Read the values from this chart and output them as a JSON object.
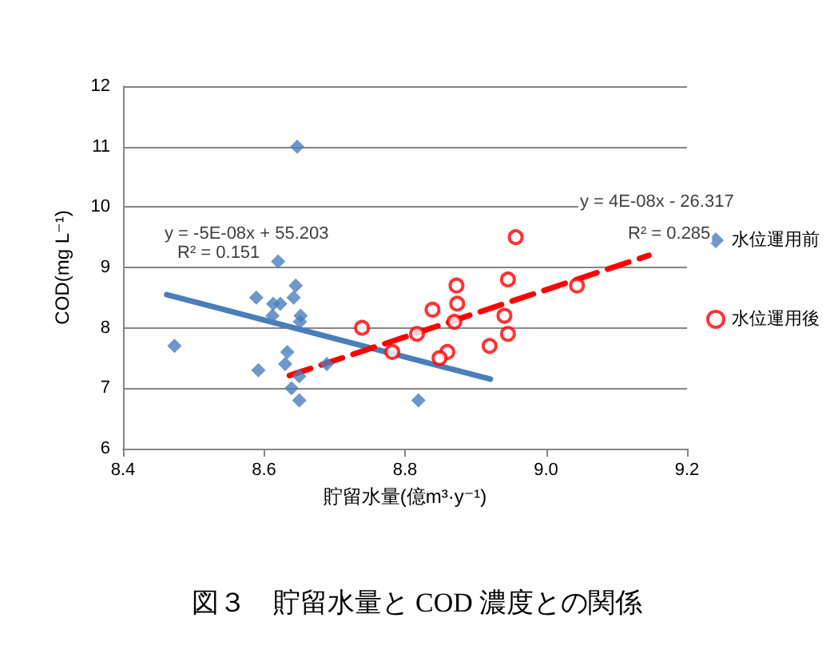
{
  "chart_data": {
    "type": "scatter",
    "title": "図３　貯留水量と COD 濃度との関係",
    "xlabel": "貯留水量(億m³·y⁻¹)",
    "ylabel": "COD(mg L⁻¹)",
    "xlim": [
      8.4,
      9.2
    ],
    "xticks": [
      {
        "value": 8.4,
        "label": "8.4"
      },
      {
        "value": 8.6,
        "label": "8.6"
      },
      {
        "value": 8.8,
        "label": "8.8"
      },
      {
        "value": 9.0,
        "label": "9.0"
      },
      {
        "value": 9.2,
        "label": "9.2"
      }
    ],
    "ylim": [
      6,
      12
    ],
    "yticks": [
      6,
      7,
      8,
      9,
      10,
      11,
      12
    ],
    "grid": "y",
    "legend": "right",
    "series": [
      {
        "name": "水位運用前",
        "color": "#4a7ebb",
        "marker": "diamond",
        "x": [
          8.473,
          8.647,
          8.589,
          8.592,
          8.612,
          8.613,
          8.623,
          8.62,
          8.642,
          8.645,
          8.633,
          8.63,
          8.639,
          8.651,
          8.652,
          8.65,
          8.65,
          8.689,
          8.819
        ],
        "values": [
          7.7,
          11.0,
          8.5,
          7.3,
          8.2,
          8.4,
          8.4,
          9.1,
          8.5,
          8.7,
          7.6,
          7.4,
          7.0,
          8.1,
          8.2,
          7.2,
          6.8,
          7.4,
          6.8
        ]
      },
      {
        "name": "水位運用後",
        "color": "#ff0000",
        "marker": "circle",
        "x": [
          8.957,
          8.946,
          8.873,
          8.874,
          8.839,
          8.941,
          8.87,
          8.946,
          8.817,
          8.86,
          8.849,
          8.92,
          9.044,
          8.739,
          8.782
        ],
        "values": [
          9.5,
          8.8,
          8.7,
          8.4,
          8.3,
          8.2,
          8.1,
          7.9,
          7.9,
          7.6,
          7.5,
          7.7,
          8.7,
          8.0,
          7.6
        ]
      },
      {
        "type": "line",
        "color": "#4a7ebb",
        "line_style": "solid",
        "marker": "none",
        "x": [
          8.462,
          8.921
        ],
        "values": [
          8.55,
          7.15
        ]
      },
      {
        "type": "line",
        "color": "#ff0000",
        "line_style": "dashed",
        "marker": "none",
        "x": [
          8.636,
          9.146
        ],
        "values": [
          7.21,
          9.2
        ]
      }
    ],
    "annotations": [
      "y = -5E-08x + 55.203",
      "R² = 0.151",
      "y = 4E-08x - 26.317",
      "R² = 0.285"
    ]
  }
}
